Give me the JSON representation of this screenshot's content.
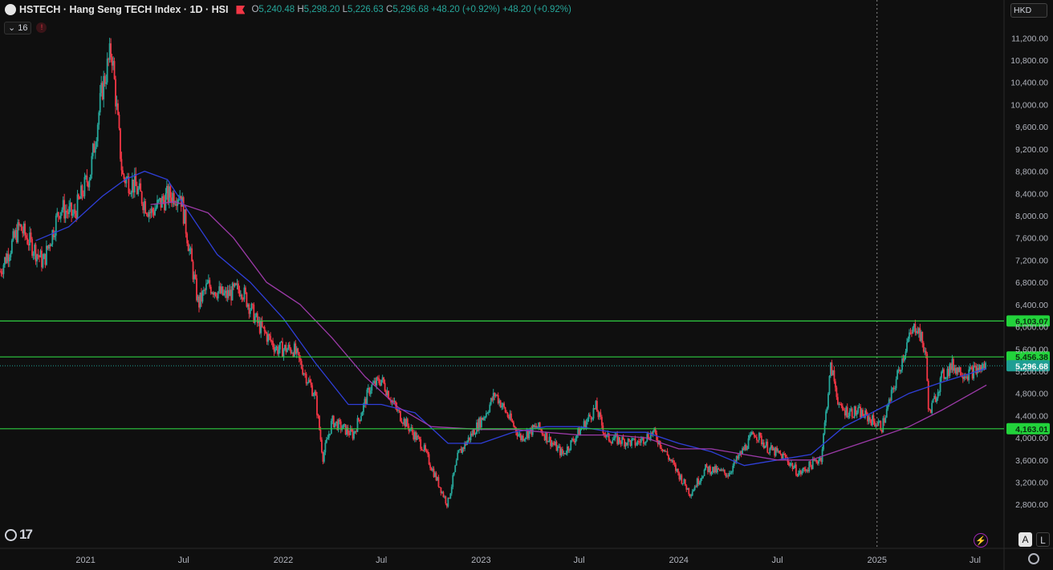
{
  "header": {
    "title": "HSTECH · Hang Seng TECH Index · 1D · HSI",
    "open_label": "O",
    "open": "5,240.48",
    "high_label": "H",
    "high": "5,298.20",
    "low_label": "L",
    "low": "5,226.63",
    "close_label": "C",
    "close": "5,296.68",
    "change": "+48.20 (+0.92%)",
    "change2": "+48.20 (+0.92%)"
  },
  "indicators": {
    "count": "16",
    "alert_icon": "error-icon"
  },
  "currency": "HKD",
  "buttons": {
    "auto": "A",
    "log": "L"
  },
  "colors": {
    "up": "#26a69a",
    "down": "#f23645",
    "ma_fast": "#2f3fd9",
    "ma_slow": "#9c3aa8",
    "level": "#2ecc40",
    "level_label_bg": "#22d33b",
    "price_label_bg": "#1e9e93"
  },
  "chart_data": {
    "type": "line",
    "title": "HSTECH · Hang Seng TECH Index · 1D · HSI",
    "ylim": [
      2500,
      11450
    ],
    "y_ticks": [
      11200,
      10800,
      10400,
      10000,
      9600,
      9200,
      8800,
      8400,
      8000,
      7600,
      7200,
      6800,
      6400,
      6000,
      5600,
      5200,
      4800,
      4400,
      4000,
      3600,
      3200,
      2800
    ],
    "y_tick_labels": [
      "11,200.00",
      "10,800.00",
      "10,400.00",
      "10,000.00",
      "9,600.00",
      "9,200.00",
      "8,800.00",
      "8,400.00",
      "8,000.00",
      "7,600.00",
      "7,200.00",
      "6,800.00",
      "6,400.00",
      "6,000.00",
      "5,600.00",
      "5,200.00",
      "4,800.00",
      "4,400.00",
      "4,000.00",
      "3,600.00",
      "3,200.00",
      "2,800.00"
    ],
    "x_ticks": [
      {
        "label": "2021",
        "date": "2021-01-01"
      },
      {
        "label": "Jul",
        "date": "2021-07-01"
      },
      {
        "label": "2022",
        "date": "2022-01-01"
      },
      {
        "label": "Jul",
        "date": "2022-07-01"
      },
      {
        "label": "2023",
        "date": "2023-01-01"
      },
      {
        "label": "Jul",
        "date": "2023-07-01"
      },
      {
        "label": "2024",
        "date": "2024-01-01"
      },
      {
        "label": "Jul",
        "date": "2024-07-01"
      },
      {
        "label": "2025",
        "date": "2025-01-01"
      },
      {
        "label": "Jul",
        "date": "2025-07-01"
      }
    ],
    "x_range": [
      "2020-07-27",
      "2025-08-22"
    ],
    "crosshair_date": "2025-01-01",
    "last_price": {
      "value": 5296.68,
      "label": "5,296.68"
    },
    "levels": [
      {
        "value": 6103.07,
        "label": "6,103.07"
      },
      {
        "value": 5456.38,
        "label": "5,456.38"
      },
      {
        "value": 4163.01,
        "label": "4,163.01"
      }
    ],
    "series": [
      {
        "type": "candlestick",
        "points": [
          [
            "2020-07-27",
            7000
          ],
          [
            "2020-09-01",
            7800
          ],
          [
            "2020-10-15",
            7150
          ],
          [
            "2020-11-15",
            8150
          ],
          [
            "2020-12-10",
            8000
          ],
          [
            "2021-01-10",
            8800
          ],
          [
            "2021-02-01",
            10300
          ],
          [
            "2021-02-18",
            11000
          ],
          [
            "2021-03-10",
            8700
          ],
          [
            "2021-04-01",
            8550
          ],
          [
            "2021-05-01",
            8050
          ],
          [
            "2021-06-01",
            8350
          ],
          [
            "2021-06-25",
            8400
          ],
          [
            "2021-07-28",
            6400
          ],
          [
            "2021-08-15",
            6750
          ],
          [
            "2021-09-15",
            6550
          ],
          [
            "2021-10-15",
            6700
          ],
          [
            "2021-11-15",
            6050
          ],
          [
            "2021-12-20",
            5600
          ],
          [
            "2022-01-20",
            5600
          ],
          [
            "2022-03-01",
            4750
          ],
          [
            "2022-03-15",
            3650
          ],
          [
            "2022-04-01",
            4300
          ],
          [
            "2022-05-10",
            4050
          ],
          [
            "2022-06-10",
            4900
          ],
          [
            "2022-07-01",
            5050
          ],
          [
            "2022-08-01",
            4450
          ],
          [
            "2022-09-15",
            3850
          ],
          [
            "2022-10-31",
            2800
          ],
          [
            "2022-11-20",
            3700
          ],
          [
            "2023-01-10",
            4450
          ],
          [
            "2023-01-27",
            4800
          ],
          [
            "2023-03-15",
            4000
          ],
          [
            "2023-04-15",
            4200
          ],
          [
            "2023-06-01",
            3700
          ],
          [
            "2023-07-15",
            4300
          ],
          [
            "2023-08-01",
            4550
          ],
          [
            "2023-08-20",
            4000
          ],
          [
            "2023-10-15",
            3900
          ],
          [
            "2023-11-15",
            4100
          ],
          [
            "2023-12-10",
            3700
          ],
          [
            "2024-01-22",
            3000
          ],
          [
            "2024-02-20",
            3450
          ],
          [
            "2024-04-01",
            3350
          ],
          [
            "2024-05-20",
            4100
          ],
          [
            "2024-06-15",
            3800
          ],
          [
            "2024-07-15",
            3650
          ],
          [
            "2024-08-10",
            3350
          ],
          [
            "2024-09-20",
            3650
          ],
          [
            "2024-10-08",
            5300
          ],
          [
            "2024-10-25",
            4500
          ],
          [
            "2024-12-01",
            4450
          ],
          [
            "2025-01-10",
            4200
          ],
          [
            "2025-02-01",
            4900
          ],
          [
            "2025-02-25",
            5700
          ],
          [
            "2025-03-15",
            6050
          ],
          [
            "2025-04-01",
            5500
          ],
          [
            "2025-04-07",
            4400
          ],
          [
            "2025-05-01",
            5100
          ],
          [
            "2025-05-20",
            5300
          ],
          [
            "2025-06-15",
            5150
          ],
          [
            "2025-07-10",
            5250
          ],
          [
            "2025-07-22",
            5297
          ]
        ]
      },
      {
        "type": "line",
        "points": [
          [
            "2020-10-01",
            7550
          ],
          [
            "2020-12-01",
            7800
          ],
          [
            "2021-02-01",
            8350
          ],
          [
            "2021-03-15",
            8650
          ],
          [
            "2021-04-20",
            8800
          ],
          [
            "2021-06-01",
            8650
          ],
          [
            "2021-07-01",
            8200
          ],
          [
            "2021-09-01",
            7300
          ],
          [
            "2021-11-01",
            6800
          ],
          [
            "2022-01-01",
            6150
          ],
          [
            "2022-03-01",
            5350
          ],
          [
            "2022-05-01",
            4600
          ],
          [
            "2022-07-01",
            4600
          ],
          [
            "2022-09-01",
            4450
          ],
          [
            "2022-11-01",
            3900
          ],
          [
            "2023-01-01",
            3900
          ],
          [
            "2023-03-01",
            4100
          ],
          [
            "2023-05-01",
            4200
          ],
          [
            "2023-07-01",
            4200
          ],
          [
            "2023-09-01",
            4100
          ],
          [
            "2023-11-01",
            4100
          ],
          [
            "2024-01-01",
            3900
          ],
          [
            "2024-03-01",
            3750
          ],
          [
            "2024-05-01",
            3500
          ],
          [
            "2024-07-01",
            3600
          ],
          [
            "2024-09-01",
            3700
          ],
          [
            "2024-11-01",
            4200
          ],
          [
            "2025-01-01",
            4500
          ],
          [
            "2025-03-01",
            4800
          ],
          [
            "2025-05-01",
            5000
          ],
          [
            "2025-07-22",
            5250
          ]
        ]
      },
      {
        "type": "line",
        "points": [
          [
            "2021-05-01",
            8200
          ],
          [
            "2021-06-15",
            8250
          ],
          [
            "2021-08-15",
            8050
          ],
          [
            "2021-10-01",
            7600
          ],
          [
            "2021-12-01",
            6800
          ],
          [
            "2022-02-01",
            6400
          ],
          [
            "2022-04-01",
            5800
          ],
          [
            "2022-06-01",
            5100
          ],
          [
            "2022-08-01",
            4550
          ],
          [
            "2022-10-01",
            4200
          ],
          [
            "2023-01-01",
            4150
          ],
          [
            "2023-03-01",
            4150
          ],
          [
            "2023-05-01",
            4100
          ],
          [
            "2023-07-01",
            4050
          ],
          [
            "2023-09-01",
            4050
          ],
          [
            "2023-11-01",
            4000
          ],
          [
            "2024-01-01",
            3800
          ],
          [
            "2024-03-01",
            3800
          ],
          [
            "2024-05-01",
            3700
          ],
          [
            "2024-07-01",
            3600
          ],
          [
            "2024-09-01",
            3600
          ],
          [
            "2024-11-01",
            3800
          ],
          [
            "2025-01-01",
            4000
          ],
          [
            "2025-03-01",
            4200
          ],
          [
            "2025-05-01",
            4500
          ],
          [
            "2025-07-22",
            4950
          ]
        ]
      }
    ]
  }
}
